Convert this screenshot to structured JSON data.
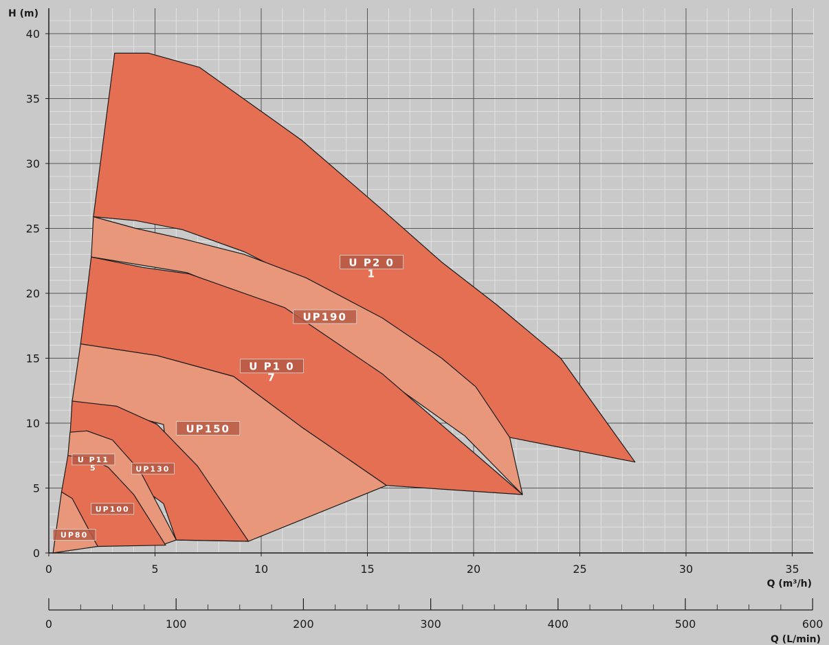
{
  "chart_data": {
    "type": "area",
    "y_axis": {
      "label": "H (m)",
      "min": 0,
      "max": 40,
      "ticks": [
        0,
        5,
        10,
        15,
        20,
        25,
        30,
        35,
        40
      ]
    },
    "x_axis": {
      "label": "Q (m³/h)",
      "min": 0,
      "max": 36,
      "ticks": [
        0,
        5,
        10,
        15,
        20,
        25,
        30,
        35
      ]
    },
    "x_axis_secondary": {
      "label": "Q (L/min)",
      "min": 0,
      "max": 600,
      "ticks": [
        0,
        100,
        200,
        300,
        400,
        500,
        600
      ]
    },
    "grid": true,
    "colors": {
      "dark": "#e56f53",
      "light": "#e8977a",
      "background": "#c9c9c9"
    },
    "series": [
      {
        "name": "UP210",
        "label_lines": [
          "U P2  0",
          "1"
        ],
        "fill": "dark",
        "label_at": [
          15.2,
          22.4
        ],
        "x": [
          3.1,
          4.7,
          7.1,
          11.9,
          15.8,
          18.5,
          21.1,
          24.1,
          27.6,
          21.7,
          19.6,
          15.7,
          12.1,
          9.2,
          6.3,
          4.1,
          2.1,
          3.1
        ],
        "y": [
          38.5,
          38.5,
          37.4,
          31.8,
          26.3,
          22.4,
          19.1,
          15.0,
          7.0,
          8.9,
          13.1,
          17.4,
          20.8,
          23.2,
          24.9,
          25.6,
          25.9,
          38.5
        ]
      },
      {
        "name": "UP190",
        "label_lines": [
          "UP190"
        ],
        "fill": "light",
        "label_at": [
          13.0,
          18.2
        ],
        "x": [
          2.1,
          4.1,
          6.3,
          9.2,
          12.1,
          15.7,
          18.5,
          20.1,
          21.7,
          22.3,
          19.6,
          16.0,
          12.7,
          9.5,
          6.5,
          2.0,
          2.1
        ],
        "y": [
          25.9,
          25.0,
          24.2,
          23.0,
          21.2,
          18.1,
          15.0,
          12.8,
          8.9,
          4.5,
          9.0,
          13.2,
          16.8,
          19.6,
          21.6,
          22.8,
          25.9
        ]
      },
      {
        "name": "UP170",
        "label_lines": [
          "U P1  0",
          "7"
        ],
        "fill": "dark",
        "label_at": [
          10.5,
          14.4
        ],
        "x": [
          2.0,
          4.4,
          6.6,
          11.1,
          15.7,
          22.3,
          15.9,
          11.9,
          8.7,
          5.1,
          1.5,
          2.0
        ],
        "y": [
          22.8,
          22.0,
          21.5,
          18.9,
          13.8,
          4.5,
          5.2,
          9.7,
          13.6,
          15.2,
          16.1,
          22.8
        ]
      },
      {
        "name": "UP150",
        "label_lines": [
          "UP150"
        ],
        "fill": "light",
        "label_at": [
          7.5,
          9.6
        ],
        "x": [
          1.5,
          5.1,
          8.7,
          11.9,
          15.9,
          9.4,
          6.0,
          5.4,
          1.1,
          1.5
        ],
        "y": [
          16.1,
          15.2,
          13.6,
          9.7,
          5.2,
          0.9,
          1.0,
          9.9,
          11.7,
          16.1
        ]
      },
      {
        "name": "UP130",
        "label_lines": [
          "UP130"
        ],
        "fill": "dark",
        "label_at": [
          4.9,
          6.5
        ],
        "x": [
          1.1,
          3.2,
          5.1,
          7.0,
          9.4,
          6.0,
          5.4,
          1.0,
          1.1
        ],
        "y": [
          11.7,
          11.3,
          9.9,
          6.7,
          0.9,
          1.0,
          3.8,
          9.1,
          11.7
        ]
      },
      {
        "name": "UP115",
        "label_lines": [
          "U P11",
          "5"
        ],
        "fill": "light",
        "label_at": [
          2.1,
          7.2
        ],
        "x": [
          1.0,
          1.8,
          3.0,
          4.3,
          6.0,
          5.3,
          0.9,
          1.0
        ],
        "y": [
          9.3,
          9.4,
          8.7,
          6.3,
          1.0,
          0.6,
          7.5,
          9.3
        ]
      },
      {
        "name": "UP100",
        "label_lines": [
          "UP100"
        ],
        "fill": "dark",
        "label_at": [
          3.0,
          3.4
        ],
        "x": [
          0.9,
          1.9,
          2.8,
          4.0,
          5.5,
          2.3,
          0.6,
          0.9
        ],
        "y": [
          7.5,
          7.3,
          6.6,
          4.5,
          0.6,
          0.5,
          4.7,
          7.5
        ]
      },
      {
        "name": "UP80",
        "label_lines": [
          "UP80"
        ],
        "fill": "light",
        "label_at": [
          1.2,
          1.4
        ],
        "x": [
          0.6,
          1.1,
          2.3,
          0.2,
          0.6
        ],
        "y": [
          4.7,
          4.2,
          0.5,
          0.0,
          4.7
        ]
      }
    ]
  }
}
